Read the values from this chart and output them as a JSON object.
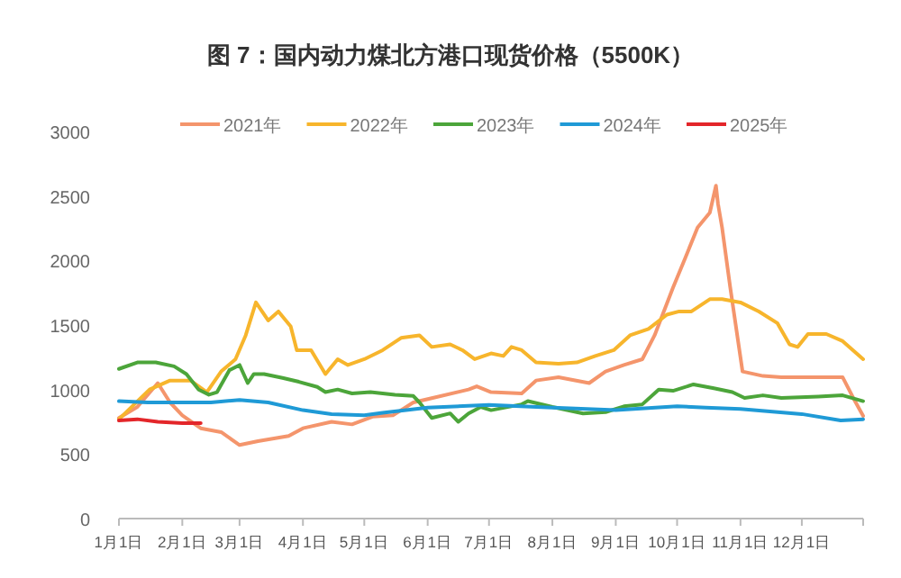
{
  "chart_data": {
    "type": "line",
    "title": "图 7：国内动力煤北方港口现货价格（5500K）",
    "xlim": [
      "--01-01",
      "--12-31"
    ],
    "xticks": [
      {
        "value": "--01-01",
        "label": "1月1日"
      },
      {
        "value": "--02-01",
        "label": "2月1日"
      },
      {
        "value": "--03-01",
        "label": "3月1日"
      },
      {
        "value": "--04-01",
        "label": "4月1日"
      },
      {
        "value": "--05-01",
        "label": "5月1日"
      },
      {
        "value": "--06-01",
        "label": "6月1日"
      },
      {
        "value": "--07-01",
        "label": "7月1日"
      },
      {
        "value": "--08-01",
        "label": "8月1日"
      },
      {
        "value": "--09-01",
        "label": "9月1日"
      },
      {
        "value": "--10-01",
        "label": "10月1日"
      },
      {
        "value": "--11-01",
        "label": "11月1日"
      },
      {
        "value": "--12-01",
        "label": "12月1日"
      }
    ],
    "ylim": [
      0,
      3000
    ],
    "yticks": [
      0,
      500,
      1000,
      1500,
      2000,
      2500,
      3000
    ],
    "grid": false,
    "legend": "top",
    "series": [
      {
        "name": "2021年",
        "color": "#f4956c",
        "x": [
          "--01-01",
          "--01-10",
          "--01-20",
          "--01-26",
          "--02-01",
          "--02-10",
          "--02-20",
          "--03-01",
          "--03-10",
          "--03-25",
          "--04-01",
          "--04-15",
          "--04-25",
          "--05-05",
          "--05-15",
          "--05-25",
          "--06-03",
          "--06-21",
          "--06-25",
          "--07-02",
          "--07-17",
          "--07-24",
          "--08-04",
          "--08-19",
          "--08-27",
          "--09-05",
          "--09-14",
          "--09-20",
          "--09-29",
          "--10-05",
          "--10-11",
          "--10-17",
          "--10-20",
          "--10-21",
          "--10-23",
          "--10-27",
          "--11-02",
          "--11-12",
          "--11-21",
          "--12-21",
          "--12-27",
          "--12-31"
        ],
        "values": [
          780,
          865,
          1050,
          900,
          800,
          700,
          670,
          570,
          600,
          640,
          700,
          750,
          730,
          790,
          800,
          900,
          933,
          1000,
          1025,
          980,
          970,
          1070,
          1095,
          1050,
          1140,
          1190,
          1235,
          1420,
          1790,
          2020,
          2255,
          2370,
          2580,
          2440,
          2255,
          1790,
          1140,
          1105,
          1095,
          1095,
          910,
          795
        ]
      },
      {
        "name": "2022年",
        "color": "#f7b52c",
        "x": [
          "--01-01",
          "--01-16",
          "--01-26",
          "--02-05",
          "--02-13",
          "--02-20",
          "--02-27",
          "--03-04",
          "--03-09",
          "--03-15",
          "--03-20",
          "--03-26",
          "--03-29",
          "--04-05",
          "--04-12",
          "--04-18",
          "--04-23",
          "--05-01",
          "--05-10",
          "--05-19",
          "--05-28",
          "--06-03",
          "--06-12",
          "--06-18",
          "--06-24",
          "--07-02",
          "--07-08",
          "--07-12",
          "--07-17",
          "--07-24",
          "--08-04",
          "--08-13",
          "--08-22",
          "--08-31",
          "--09-08",
          "--09-17",
          "--09-26",
          "--10-02",
          "--10-08",
          "--10-17",
          "--10-23",
          "--11-01",
          "--11-10",
          "--11-19",
          "--11-25",
          "--11-29",
          "--12-04",
          "--12-13",
          "--12-21",
          "--12-31"
        ],
        "values": [
          770,
          1000,
          1070,
          1070,
          980,
          1140,
          1235,
          1420,
          1675,
          1535,
          1605,
          1490,
          1305,
          1305,
          1120,
          1235,
          1190,
          1235,
          1305,
          1400,
          1420,
          1330,
          1350,
          1305,
          1235,
          1280,
          1260,
          1330,
          1305,
          1210,
          1200,
          1210,
          1260,
          1305,
          1420,
          1470,
          1580,
          1605,
          1605,
          1700,
          1700,
          1675,
          1605,
          1515,
          1350,
          1330,
          1430,
          1430,
          1375,
          1235
        ]
      },
      {
        "name": "2023年",
        "color": "#4ca53a",
        "x": [
          "--01-01",
          "--01-10",
          "--01-19",
          "--01-28",
          "--02-03",
          "--02-09",
          "--02-14",
          "--02-18",
          "--02-24",
          "--03-01",
          "--03-05",
          "--03-08",
          "--03-13",
          "--03-22",
          "--03-30",
          "--04-08",
          "--04-12",
          "--04-18",
          "--04-25",
          "--05-04",
          "--05-16",
          "--05-25",
          "--05-28",
          "--06-03",
          "--06-12",
          "--06-16",
          "--06-21",
          "--06-27",
          "--07-02",
          "--07-17",
          "--07-20",
          "--08-01",
          "--08-16",
          "--08-27",
          "--09-05",
          "--09-14",
          "--09-22",
          "--09-29",
          "--10-09",
          "--10-19",
          "--10-28",
          "--11-03",
          "--11-12",
          "--11-21",
          "--12-09",
          "--12-21",
          "--12-31"
        ],
        "values": [
          1160,
          1210,
          1210,
          1180,
          1120,
          1000,
          960,
          980,
          1150,
          1190,
          1050,
          1120,
          1120,
          1090,
          1060,
          1020,
          980,
          1000,
          970,
          980,
          960,
          950,
          900,
          780,
          815,
          750,
          815,
          865,
          840,
          885,
          910,
          865,
          815,
          825,
          870,
          885,
          1000,
          990,
          1040,
          1010,
          980,
          935,
          955,
          935,
          945,
          955,
          910
        ]
      },
      {
        "name": "2024年",
        "color": "#1f9ad6",
        "x": [
          "--01-01",
          "--01-15",
          "--02-01",
          "--02-15",
          "--03-01",
          "--03-15",
          "--04-01",
          "--04-15",
          "--05-01",
          "--05-10",
          "--06-01",
          "--07-01",
          "--08-01",
          "--09-01",
          "--10-01",
          "--10-15",
          "--11-01",
          "--12-01",
          "--12-20",
          "--12-31"
        ],
        "values": [
          910,
          900,
          900,
          900,
          920,
          900,
          840,
          810,
          800,
          820,
          860,
          880,
          860,
          840,
          870,
          860,
          850,
          810,
          760,
          770
        ]
      },
      {
        "name": "2025年",
        "color": "#e3262a",
        "x": [
          "--01-01",
          "--01-10",
          "--01-20",
          "--02-01",
          "--02-10"
        ],
        "values": [
          760,
          770,
          750,
          740,
          740
        ]
      }
    ]
  }
}
